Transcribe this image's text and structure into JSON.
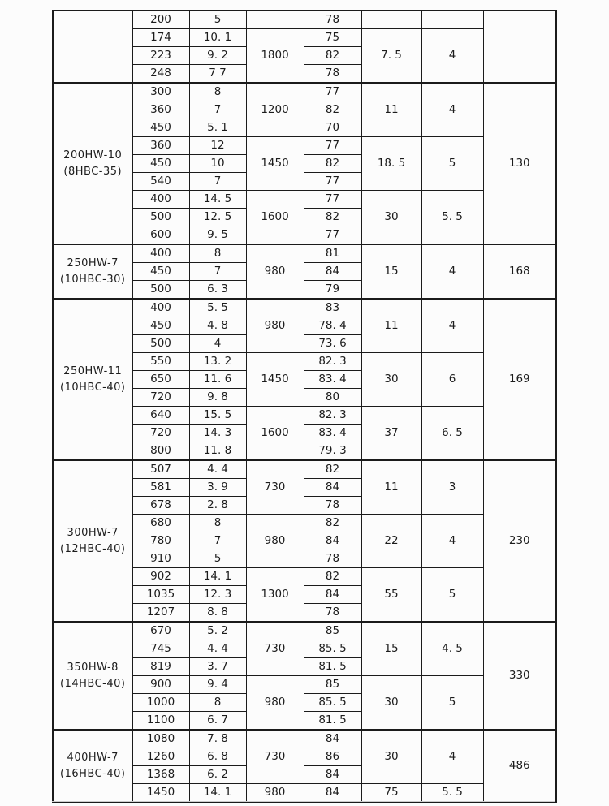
{
  "table": {
    "sections": [
      {
        "model": [
          "",
          ""
        ],
        "weight": "",
        "subgroups": [
          {
            "speed": "",
            "power": "",
            "col7": "",
            "rows": [
              [
                "200",
                "5",
                "78"
              ]
            ]
          },
          {
            "speed": "1800",
            "power": "7. 5",
            "col7": "4",
            "rows": [
              [
                "174",
                "10. 1",
                "75"
              ],
              [
                "223",
                "9. 2",
                "82"
              ],
              [
                "248",
                "7 7",
                "78"
              ]
            ]
          }
        ]
      },
      {
        "model": [
          "200HW-10",
          "(8HBC-35)"
        ],
        "weight": "130",
        "subgroups": [
          {
            "speed": "1200",
            "power": "11",
            "col7": "4",
            "rows": [
              [
                "300",
                "8",
                "77"
              ],
              [
                "360",
                "7",
                "82"
              ],
              [
                "450",
                "5. 1",
                "70"
              ]
            ]
          },
          {
            "speed": "1450",
            "power": "18. 5",
            "col7": "5",
            "rows": [
              [
                "360",
                "12",
                "77"
              ],
              [
                "450",
                "10",
                "82"
              ],
              [
                "540",
                "7",
                "77"
              ]
            ]
          },
          {
            "speed": "1600",
            "power": "30",
            "col7": "5. 5",
            "rows": [
              [
                "400",
                "14. 5",
                "77"
              ],
              [
                "500",
                "12. 5",
                "82"
              ],
              [
                "600",
                "9. 5",
                "77"
              ]
            ]
          }
        ]
      },
      {
        "model": [
          "250HW-7",
          "(10HBC-30)"
        ],
        "weight": "168",
        "subgroups": [
          {
            "speed": "980",
            "power": "15",
            "col7": "4",
            "rows": [
              [
                "400",
                "8",
                "81"
              ],
              [
                "450",
                "7",
                "84"
              ],
              [
                "500",
                "6. 3",
                "79"
              ]
            ]
          }
        ]
      },
      {
        "model": [
          "250HW-11",
          "(10HBC-40)"
        ],
        "weight": "169",
        "subgroups": [
          {
            "speed": "980",
            "power": "11",
            "col7": "4",
            "rows": [
              [
                "400",
                "5. 5",
                "83"
              ],
              [
                "450",
                "4. 8",
                "78. 4"
              ],
              [
                "500",
                "4",
                "73. 6"
              ]
            ]
          },
          {
            "speed": "1450",
            "power": "30",
            "col7": "6",
            "rows": [
              [
                "550",
                "13. 2",
                "82. 3"
              ],
              [
                "650",
                "11. 6",
                "83. 4"
              ],
              [
                "720",
                "9. 8",
                "80"
              ]
            ]
          },
          {
            "speed": "1600",
            "power": "37",
            "col7": "6. 5",
            "rows": [
              [
                "640",
                "15. 5",
                "82. 3"
              ],
              [
                "720",
                "14. 3",
                "83. 4"
              ],
              [
                "800",
                "11. 8",
                "79. 3"
              ]
            ]
          }
        ]
      },
      {
        "model": [
          "300HW-7",
          "(12HBC-40)"
        ],
        "weight": "230",
        "subgroups": [
          {
            "speed": "730",
            "power": "11",
            "col7": "3",
            "rows": [
              [
                "507",
                "4. 4",
                "82"
              ],
              [
                "581",
                "3. 9",
                "84"
              ],
              [
                "678",
                "2. 8",
                "78"
              ]
            ]
          },
          {
            "speed": "980",
            "power": "22",
            "col7": "4",
            "rows": [
              [
                "680",
                "8",
                "82"
              ],
              [
                "780",
                "7",
                "84"
              ],
              [
                "910",
                "5",
                "78"
              ]
            ]
          },
          {
            "speed": "1300",
            "power": "55",
            "col7": "5",
            "rows": [
              [
                "902",
                "14. 1",
                "82"
              ],
              [
                "1035",
                "12. 3",
                "84"
              ],
              [
                "1207",
                "8. 8",
                "78"
              ]
            ]
          }
        ]
      },
      {
        "model": [
          "350HW-8",
          "(14HBC-40)"
        ],
        "weight": "330",
        "subgroups": [
          {
            "speed": "730",
            "power": "15",
            "col7": "4. 5",
            "rows": [
              [
                "670",
                "5. 2",
                "85"
              ],
              [
                "745",
                "4. 4",
                "85. 5"
              ],
              [
                "819",
                "3. 7",
                "81. 5"
              ]
            ]
          },
          {
            "speed": "980",
            "power": "30",
            "col7": "5",
            "rows": [
              [
                "900",
                "9. 4",
                "85"
              ],
              [
                "1000",
                "8",
                "85. 5"
              ],
              [
                "1100",
                "6. 7",
                "81. 5"
              ]
            ]
          }
        ]
      },
      {
        "model": [
          "400HW-7",
          "(16HBC-40)"
        ],
        "weight": "486",
        "subgroups": [
          {
            "speed": "730",
            "power": "30",
            "col7": "4",
            "rows": [
              [
                "1080",
                "7. 8",
                "84"
              ],
              [
                "1260",
                "6. 8",
                "86"
              ],
              [
                "1368",
                "6. 2",
                "84"
              ]
            ]
          },
          {
            "speed": "980",
            "power": "75",
            "col7": "5. 5",
            "rows": [
              [
                "1450",
                "14. 1",
                "84"
              ]
            ]
          }
        ]
      }
    ]
  }
}
